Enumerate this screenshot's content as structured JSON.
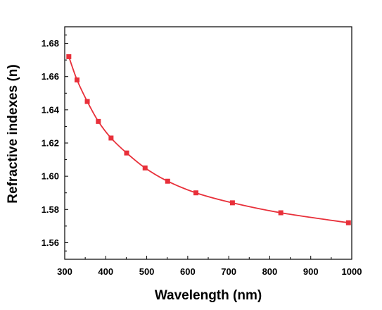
{
  "chart_data": {
    "type": "line",
    "title": "",
    "xlabel": "Wavelength (nm)",
    "ylabel": "Refractive indexes (n)",
    "xlim": [
      300,
      1000
    ],
    "ylim": [
      1.55,
      1.69
    ],
    "x_ticks": [
      300,
      400,
      500,
      600,
      700,
      800,
      900,
      1000
    ],
    "x_tick_labels": [
      "300",
      "400",
      "500",
      "600",
      "700",
      "800",
      "900",
      "1000"
    ],
    "y_ticks": [
      1.56,
      1.58,
      1.6,
      1.62,
      1.64,
      1.66,
      1.68
    ],
    "y_tick_labels": [
      "1.56",
      "1.58",
      "1.60",
      "1.62",
      "1.64",
      "1.66",
      "1.68"
    ],
    "grid": false,
    "legend": "none",
    "series": [
      {
        "color": "#e8303a",
        "marker": "square",
        "x": [
          310,
          330,
          355,
          382,
          413,
          451,
          496,
          551,
          620,
          709,
          827,
          992
        ],
        "y": [
          1.672,
          1.658,
          1.645,
          1.633,
          1.623,
          1.614,
          1.605,
          1.597,
          1.59,
          1.584,
          1.578,
          1.572
        ]
      }
    ]
  }
}
